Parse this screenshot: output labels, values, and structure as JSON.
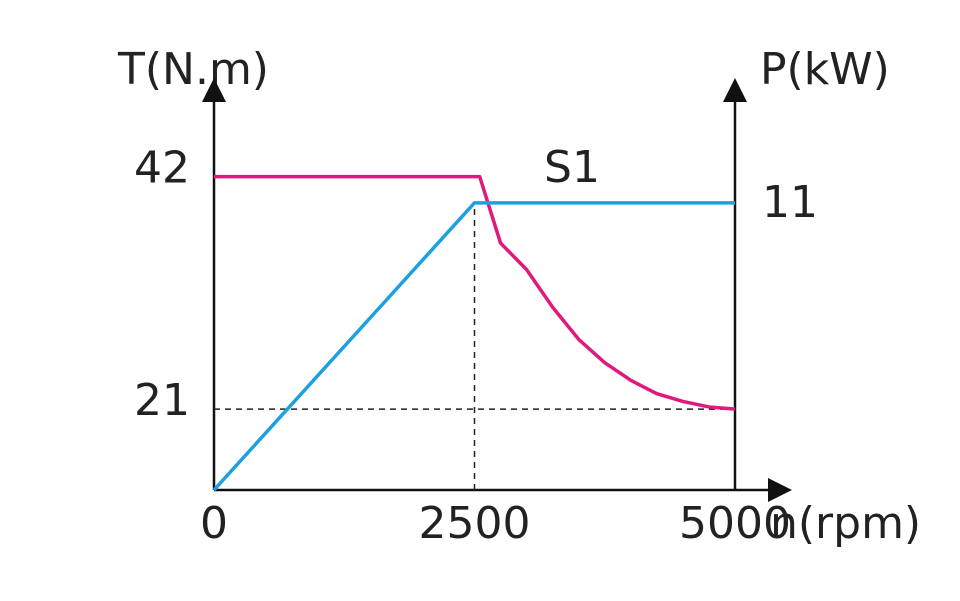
{
  "chart_data": {
    "type": "line",
    "y_label": "T(N.m)",
    "y2_label": "P(kW)",
    "x_label": "n(rpm)",
    "annotation": "S1",
    "xlim": [
      0,
      5000
    ],
    "xticks": [
      0,
      2500,
      5000
    ],
    "ylim": [
      13.7,
      50
    ],
    "yticks": [
      21,
      42
    ],
    "y2lim": [
      0,
      15.4
    ],
    "y2ticks": [
      11
    ],
    "series": [
      {
        "color": "#e0197d",
        "x": [
          0,
          2550,
          2750,
          3000,
          3250,
          3500,
          3750,
          4000,
          4250,
          4500,
          4750,
          5000
        ],
        "values": [
          42,
          42,
          36,
          33.6,
          30.2,
          27.3,
          25.2,
          23.6,
          22.4,
          21.7,
          21.2,
          21
        ]
      },
      {
        "color": "#1ba1e2",
        "axis": "y2",
        "x": [
          0,
          2500,
          5000
        ],
        "values": [
          0,
          11,
          11
        ]
      }
    ]
  }
}
